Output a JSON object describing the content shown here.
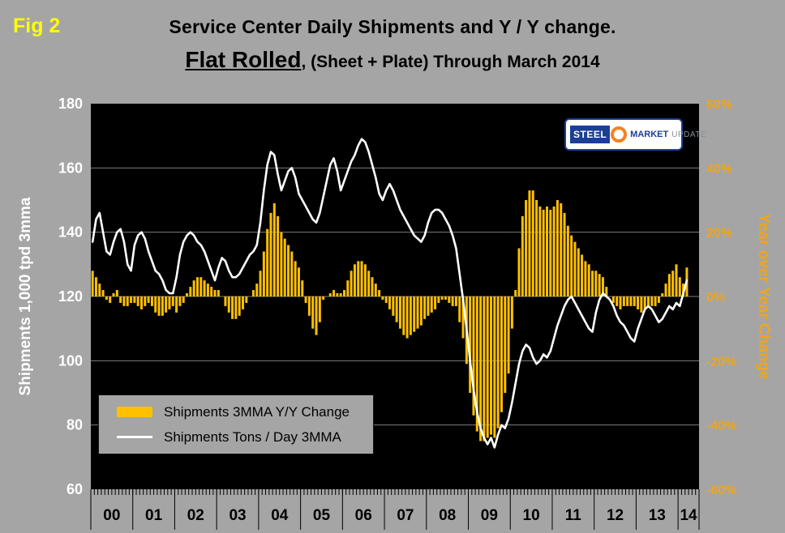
{
  "header": {
    "fig_label": "Fig 2",
    "title_line1": "Service Center Daily Shipments and Y / Y change.",
    "title_flat_rolled": "Flat Rolled",
    "title_line2_rest": ", (Sheet + Plate) Through March 2014"
  },
  "logo": {
    "steel": "STEEL",
    "market": "MARKET",
    "update": "UPDATE"
  },
  "colors": {
    "page_bg": "#A5A5A5",
    "plot_bg": "#000000",
    "bars": "#FFC000",
    "line": "#FFFFFF",
    "gridline": "#7d7d7d",
    "left_axis_text": "#FFFFFF",
    "right_axis_text": "#EFA51C",
    "fig_label": "#FFFF00"
  },
  "chart_data": {
    "type": "combo",
    "x_start": "2000-01",
    "x_end": "2014-03",
    "x_year_labels": [
      "00",
      "01",
      "02",
      "03",
      "04",
      "05",
      "06",
      "07",
      "08",
      "09",
      "10",
      "11",
      "12",
      "13",
      "14"
    ],
    "left_axis": {
      "label": "Shipments 1,000 tpd 3mma",
      "min": 60,
      "max": 180,
      "tick_values": [
        180,
        160,
        140,
        120,
        100,
        80,
        60
      ]
    },
    "right_axis": {
      "label": "Year over Year Change",
      "min": -60,
      "max": 60,
      "tick_labels": [
        "60%",
        "40%",
        "20%",
        "0%",
        "-20%",
        "-40%",
        "-60%"
      ],
      "tick_values": [
        60,
        40,
        20,
        0,
        -20,
        -40,
        -60
      ]
    },
    "grid_values": [
      160,
      140,
      120,
      100,
      80
    ],
    "series": [
      {
        "name": "Shipments 3MMA Y/Y Change",
        "type": "bar",
        "axis": "right",
        "color": "#FFC000",
        "unit": "%",
        "values": [
          8,
          6,
          4,
          2,
          -1,
          -2,
          1,
          2,
          -2,
          -3,
          -3,
          -2,
          -2,
          -3,
          -4,
          -3,
          -2,
          -3,
          -5,
          -6,
          -6,
          -5,
          -4,
          -3,
          -5,
          -3,
          -2,
          1,
          3,
          5,
          6,
          6,
          5,
          4,
          3,
          2,
          2,
          0,
          -3,
          -5,
          -7,
          -7,
          -6,
          -4,
          -2,
          0,
          2,
          4,
          8,
          14,
          21,
          26,
          29,
          25,
          20,
          18,
          16,
          14,
          11,
          9,
          5,
          -2,
          -6,
          -10,
          -12,
          -8,
          -1,
          0,
          1,
          2,
          1,
          1,
          2,
          5,
          8,
          10,
          11,
          11,
          10,
          8,
          6,
          4,
          2,
          -1,
          -2,
          -4,
          -6,
          -8,
          -10,
          -12,
          -13,
          -12,
          -11,
          -10,
          -9,
          -7,
          -6,
          -5,
          -4,
          -2,
          -1,
          -1,
          -2,
          -3,
          -3,
          -8,
          -13,
          -21,
          -30,
          -37,
          -42,
          -45,
          -45,
          -44,
          -43,
          -44,
          -41,
          -36,
          -30,
          -24,
          -10,
          2,
          15,
          25,
          30,
          33,
          33,
          30,
          28,
          27,
          28,
          27,
          28,
          30,
          29,
          26,
          22,
          19,
          17,
          15,
          13,
          11,
          10,
          8,
          8,
          7,
          6,
          3,
          0,
          -2,
          -3,
          -4,
          -3,
          -3,
          -3,
          -3,
          -4,
          -5,
          -4,
          -3,
          -3,
          -3,
          -2,
          1,
          4,
          7,
          8,
          10,
          6,
          4,
          9
        ]
      },
      {
        "name": "Shipments Tons / Day 3MMA",
        "type": "line",
        "axis": "left",
        "color": "#FFFFFF",
        "unit": "1,000 tpd",
        "values": [
          137,
          144,
          146,
          140,
          134,
          133,
          137,
          140,
          141,
          137,
          130,
          128,
          136,
          139,
          140,
          138,
          134,
          131,
          128,
          127,
          125,
          122,
          121,
          121,
          126,
          133,
          137,
          139,
          140,
          139,
          137,
          136,
          134,
          131,
          128,
          125,
          129,
          132,
          131,
          128,
          126,
          126,
          127,
          129,
          131,
          133,
          134,
          136,
          143,
          153,
          161,
          165,
          164,
          158,
          153,
          156,
          159,
          160,
          157,
          152,
          150,
          148,
          146,
          144,
          143,
          146,
          151,
          156,
          161,
          163,
          159,
          153,
          156,
          159,
          162,
          164,
          167,
          169,
          168,
          165,
          161,
          157,
          152,
          150,
          153,
          155,
          153,
          150,
          147,
          145,
          143,
          141,
          139,
          138,
          137,
          139,
          143,
          146,
          147,
          147,
          146,
          144,
          142,
          139,
          135,
          127,
          119,
          110,
          100,
          91,
          84,
          79,
          76,
          74,
          76,
          73,
          77,
          80,
          79,
          82,
          87,
          93,
          99,
          103,
          105,
          104,
          101,
          99,
          100,
          102,
          101,
          103,
          107,
          111,
          114,
          117,
          119,
          120,
          118,
          116,
          114,
          112,
          110,
          109,
          115,
          119,
          121,
          120,
          119,
          117,
          114,
          112,
          111,
          109,
          107,
          106,
          110,
          113,
          116,
          117,
          116,
          114,
          112,
          113,
          115,
          117,
          116,
          118,
          117,
          121,
          125
        ]
      }
    ]
  }
}
